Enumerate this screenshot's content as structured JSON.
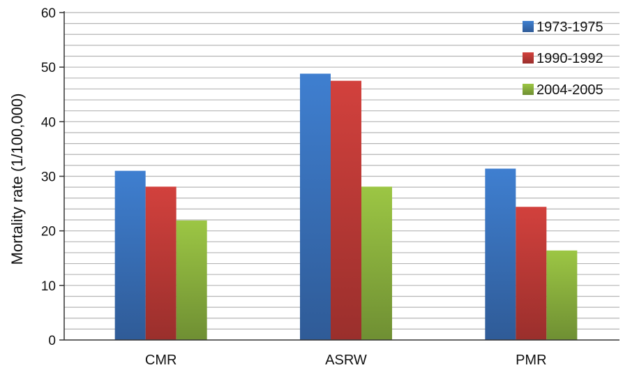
{
  "chart_data": {
    "type": "bar",
    "title": "",
    "xlabel": "",
    "ylabel": "Mortality rate (1/100,000)",
    "ylim": [
      0,
      60
    ],
    "yticks": [
      0,
      10,
      20,
      30,
      40,
      50,
      60
    ],
    "minor_grid_step": 2,
    "grid": true,
    "legend_position": "top-right",
    "categories": [
      "CMR",
      "ASRW",
      "PMR"
    ],
    "series": [
      {
        "name": "1973-1975",
        "color": "#3a72c0",
        "values": [
          31.0,
          48.8,
          31.4
        ]
      },
      {
        "name": "1990-1992",
        "color": "#c43c3a",
        "values": [
          28.1,
          47.5,
          24.4
        ]
      },
      {
        "name": "2004-2005",
        "color": "#8fb53f",
        "values": [
          21.9,
          28.1,
          16.4
        ]
      }
    ]
  }
}
